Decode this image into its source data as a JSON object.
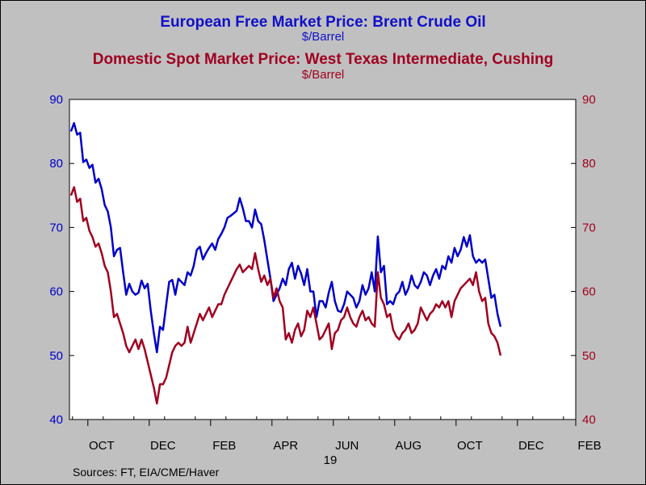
{
  "titles": {
    "series1_title": "European Free Market Price: Brent Crude Oil",
    "series1_unit": "$/Barrel",
    "series2_title": "Domestic Spot Market Price: West Texas Intermediate, Cushing",
    "series2_unit": "$/Barrel"
  },
  "source": "Sources:  FT, EIA/CME/Haver",
  "colors": {
    "background": "#c0c0c0",
    "plot_background": "#ffffff",
    "brent": "#0000c8",
    "wti": "#a00020"
  },
  "chart_data": {
    "type": "line",
    "x_unit": "months since Sep 2018 (weekly samples)",
    "x_range": [
      0,
      16.5
    ],
    "ylim": [
      40,
      90
    ],
    "y2lim": [
      40,
      90
    ],
    "left_axis_ticks": [
      "40",
      "50",
      "60",
      "70",
      "80",
      "90"
    ],
    "right_axis_ticks": [
      "40",
      "50",
      "60",
      "70",
      "80",
      "90"
    ],
    "x_tick_labels": [
      {
        "label": "OCT",
        "x": 0.6
      },
      {
        "label": "DEC",
        "x": 2.6
      },
      {
        "label": "FEB",
        "x": 4.6
      },
      {
        "label": "APR",
        "x": 6.6
      },
      {
        "label": "JUN",
        "x": 8.6
      },
      {
        "label": "AUG",
        "x": 10.6
      },
      {
        "label": "OCT",
        "x": 12.6
      },
      {
        "label": "DEC",
        "x": 14.6
      },
      {
        "label": "FEB",
        "x": 16.5
      }
    ],
    "year_label": {
      "label": "19",
      "x": 8.5
    },
    "grid": false,
    "series": [
      {
        "name": "European Free Market Price: Brent Crude Oil",
        "axis": "left",
        "color": "#0000c8",
        "points": [
          [
            0.05,
            85.0
          ],
          [
            0.15,
            86.3
          ],
          [
            0.25,
            84.5
          ],
          [
            0.35,
            84.8
          ],
          [
            0.45,
            80.2
          ],
          [
            0.55,
            80.6
          ],
          [
            0.65,
            79.3
          ],
          [
            0.75,
            79.8
          ],
          [
            0.85,
            77.0
          ],
          [
            0.95,
            77.6
          ],
          [
            1.05,
            76.0
          ],
          [
            1.15,
            73.5
          ],
          [
            1.25,
            72.5
          ],
          [
            1.35,
            70.0
          ],
          [
            1.45,
            65.5
          ],
          [
            1.55,
            66.5
          ],
          [
            1.65,
            66.8
          ],
          [
            1.75,
            63.0
          ],
          [
            1.85,
            59.5
          ],
          [
            1.95,
            61.2
          ],
          [
            2.05,
            60.0
          ],
          [
            2.15,
            59.5
          ],
          [
            2.25,
            59.8
          ],
          [
            2.35,
            61.7
          ],
          [
            2.45,
            60.5
          ],
          [
            2.55,
            61.2
          ],
          [
            2.65,
            57.0
          ],
          [
            2.75,
            53.5
          ],
          [
            2.85,
            50.5
          ],
          [
            2.95,
            54.5
          ],
          [
            3.05,
            54.0
          ],
          [
            3.15,
            57.8
          ],
          [
            3.25,
            61.5
          ],
          [
            3.35,
            61.8
          ],
          [
            3.45,
            59.5
          ],
          [
            3.55,
            62.0
          ],
          [
            3.65,
            61.5
          ],
          [
            3.75,
            61.0
          ],
          [
            3.85,
            63.0
          ],
          [
            3.95,
            62.5
          ],
          [
            4.05,
            64.0
          ],
          [
            4.15,
            66.5
          ],
          [
            4.25,
            67.0
          ],
          [
            4.35,
            65.0
          ],
          [
            4.45,
            66.0
          ],
          [
            4.55,
            66.8
          ],
          [
            4.65,
            67.5
          ],
          [
            4.75,
            66.5
          ],
          [
            4.85,
            68.2
          ],
          [
            4.95,
            69.0
          ],
          [
            5.05,
            70.0
          ],
          [
            5.15,
            71.5
          ],
          [
            5.25,
            71.8
          ],
          [
            5.35,
            72.2
          ],
          [
            5.45,
            72.6
          ],
          [
            5.55,
            74.6
          ],
          [
            5.65,
            73.0
          ],
          [
            5.75,
            71.0
          ],
          [
            5.85,
            71.0
          ],
          [
            5.95,
            70.0
          ],
          [
            6.05,
            72.8
          ],
          [
            6.15,
            71.0
          ],
          [
            6.25,
            70.5
          ],
          [
            6.35,
            68.0
          ],
          [
            6.45,
            65.0
          ],
          [
            6.55,
            62.0
          ],
          [
            6.65,
            58.5
          ],
          [
            6.75,
            59.5
          ],
          [
            6.85,
            60.5
          ],
          [
            6.95,
            62.0
          ],
          [
            7.05,
            61.0
          ],
          [
            7.15,
            63.5
          ],
          [
            7.25,
            64.5
          ],
          [
            7.35,
            62.0
          ],
          [
            7.45,
            64.0
          ],
          [
            7.55,
            62.8
          ],
          [
            7.65,
            61.0
          ],
          [
            7.75,
            63.5
          ],
          [
            7.85,
            60.0
          ],
          [
            7.95,
            60.0
          ],
          [
            8.05,
            56.0
          ],
          [
            8.15,
            58.5
          ],
          [
            8.25,
            58.5
          ],
          [
            8.35,
            57.5
          ],
          [
            8.45,
            59.8
          ],
          [
            8.55,
            61.5
          ],
          [
            8.65,
            58.5
          ],
          [
            8.75,
            57.0
          ],
          [
            8.85,
            56.8
          ],
          [
            8.95,
            58.0
          ],
          [
            9.05,
            60.0
          ],
          [
            9.15,
            59.5
          ],
          [
            9.25,
            59.0
          ],
          [
            9.35,
            57.5
          ],
          [
            9.45,
            58.5
          ],
          [
            9.55,
            61.0
          ],
          [
            9.65,
            59.5
          ],
          [
            9.75,
            60.5
          ],
          [
            9.85,
            63.0
          ],
          [
            9.95,
            60.0
          ],
          [
            10.05,
            68.6
          ],
          [
            10.15,
            63.0
          ],
          [
            10.25,
            64.0
          ],
          [
            10.35,
            58.0
          ],
          [
            10.45,
            58.5
          ],
          [
            10.55,
            58.0
          ],
          [
            10.65,
            59.5
          ],
          [
            10.75,
            60.0
          ],
          [
            10.85,
            61.5
          ],
          [
            10.95,
            59.5
          ],
          [
            11.05,
            60.5
          ],
          [
            11.15,
            62.5
          ],
          [
            11.25,
            61.0
          ],
          [
            11.35,
            60.5
          ],
          [
            11.45,
            61.5
          ],
          [
            11.55,
            63.0
          ],
          [
            11.65,
            62.5
          ],
          [
            11.75,
            61.0
          ],
          [
            11.85,
            62.5
          ],
          [
            11.95,
            63.5
          ],
          [
            12.05,
            62.0
          ],
          [
            12.15,
            64.0
          ],
          [
            12.25,
            63.5
          ],
          [
            12.35,
            65.5
          ],
          [
            12.45,
            64.5
          ],
          [
            12.55,
            66.8
          ],
          [
            12.65,
            65.5
          ],
          [
            12.75,
            66.5
          ],
          [
            12.85,
            68.5
          ],
          [
            12.95,
            67.0
          ],
          [
            13.05,
            68.8
          ],
          [
            13.15,
            65.5
          ],
          [
            13.25,
            64.5
          ],
          [
            13.35,
            65.0
          ],
          [
            13.45,
            64.5
          ],
          [
            13.55,
            65.0
          ],
          [
            13.65,
            62.0
          ],
          [
            13.75,
            59.0
          ],
          [
            13.85,
            59.5
          ],
          [
            13.95,
            56.5
          ],
          [
            14.05,
            54.5
          ]
        ]
      },
      {
        "name": "Domestic Spot Market Price: West Texas Intermediate, Cushing",
        "axis": "right",
        "color": "#a00020",
        "points": [
          [
            0.05,
            75.0
          ],
          [
            0.15,
            76.3
          ],
          [
            0.25,
            74.0
          ],
          [
            0.35,
            74.5
          ],
          [
            0.45,
            71.0
          ],
          [
            0.55,
            71.5
          ],
          [
            0.65,
            69.5
          ],
          [
            0.75,
            68.5
          ],
          [
            0.85,
            67.0
          ],
          [
            0.95,
            67.5
          ],
          [
            1.05,
            66.0
          ],
          [
            1.15,
            64.0
          ],
          [
            1.25,
            63.0
          ],
          [
            1.35,
            60.0
          ],
          [
            1.45,
            56.0
          ],
          [
            1.55,
            56.5
          ],
          [
            1.65,
            55.0
          ],
          [
            1.75,
            53.5
          ],
          [
            1.85,
            51.5
          ],
          [
            1.95,
            50.5
          ],
          [
            2.05,
            51.5
          ],
          [
            2.15,
            52.5
          ],
          [
            2.25,
            51.0
          ],
          [
            2.35,
            52.5
          ],
          [
            2.45,
            51.0
          ],
          [
            2.55,
            49.0
          ],
          [
            2.65,
            47.0
          ],
          [
            2.75,
            45.0
          ],
          [
            2.85,
            42.5
          ],
          [
            2.95,
            45.5
          ],
          [
            3.05,
            45.5
          ],
          [
            3.15,
            46.5
          ],
          [
            3.25,
            48.5
          ],
          [
            3.35,
            50.5
          ],
          [
            3.45,
            51.5
          ],
          [
            3.55,
            52.0
          ],
          [
            3.65,
            51.5
          ],
          [
            3.75,
            52.0
          ],
          [
            3.85,
            54.5
          ],
          [
            3.95,
            52.0
          ],
          [
            4.05,
            53.5
          ],
          [
            4.15,
            55.0
          ],
          [
            4.25,
            56.5
          ],
          [
            4.35,
            55.5
          ],
          [
            4.45,
            56.5
          ],
          [
            4.55,
            57.5
          ],
          [
            4.65,
            56.0
          ],
          [
            4.75,
            57.0
          ],
          [
            4.85,
            58.0
          ],
          [
            4.95,
            58.0
          ],
          [
            5.05,
            59.5
          ],
          [
            5.15,
            60.5
          ],
          [
            5.25,
            61.5
          ],
          [
            5.35,
            62.5
          ],
          [
            5.45,
            63.5
          ],
          [
            5.55,
            64.2
          ],
          [
            5.65,
            63.0
          ],
          [
            5.75,
            63.5
          ],
          [
            5.85,
            64.0
          ],
          [
            5.95,
            63.5
          ],
          [
            6.05,
            66.0
          ],
          [
            6.15,
            63.5
          ],
          [
            6.25,
            61.5
          ],
          [
            6.35,
            62.5
          ],
          [
            6.45,
            61.0
          ],
          [
            6.55,
            62.0
          ],
          [
            6.65,
            59.0
          ],
          [
            6.75,
            60.5
          ],
          [
            6.85,
            58.5
          ],
          [
            6.95,
            57.5
          ],
          [
            7.05,
            52.5
          ],
          [
            7.15,
            53.5
          ],
          [
            7.25,
            52.0
          ],
          [
            7.35,
            54.0
          ],
          [
            7.45,
            55.0
          ],
          [
            7.55,
            53.0
          ],
          [
            7.65,
            54.0
          ],
          [
            7.75,
            57.0
          ],
          [
            7.85,
            56.0
          ],
          [
            7.95,
            57.5
          ],
          [
            8.05,
            55.0
          ],
          [
            8.15,
            52.5
          ],
          [
            8.25,
            53.0
          ],
          [
            8.35,
            54.0
          ],
          [
            8.45,
            55.0
          ],
          [
            8.55,
            51.0
          ],
          [
            8.65,
            53.5
          ],
          [
            8.75,
            54.0
          ],
          [
            8.85,
            55.5
          ],
          [
            8.95,
            56.0
          ],
          [
            9.05,
            57.5
          ],
          [
            9.15,
            56.0
          ],
          [
            9.25,
            55.0
          ],
          [
            9.35,
            54.5
          ],
          [
            9.45,
            56.0
          ],
          [
            9.55,
            57.0
          ],
          [
            9.65,
            55.5
          ],
          [
            9.75,
            56.0
          ],
          [
            9.85,
            55.0
          ],
          [
            9.95,
            54.5
          ],
          [
            10.05,
            63.0
          ],
          [
            10.15,
            59.0
          ],
          [
            10.25,
            58.0
          ],
          [
            10.35,
            56.0
          ],
          [
            10.45,
            56.5
          ],
          [
            10.55,
            54.0
          ],
          [
            10.65,
            53.0
          ],
          [
            10.75,
            52.5
          ],
          [
            10.85,
            53.5
          ],
          [
            10.95,
            54.0
          ],
          [
            11.05,
            55.0
          ],
          [
            11.15,
            53.5
          ],
          [
            11.25,
            54.0
          ],
          [
            11.35,
            55.0
          ],
          [
            11.45,
            57.5
          ],
          [
            11.55,
            56.5
          ],
          [
            11.65,
            55.5
          ],
          [
            11.75,
            56.5
          ],
          [
            11.85,
            57.0
          ],
          [
            11.95,
            58.0
          ],
          [
            12.05,
            57.5
          ],
          [
            12.15,
            58.5
          ],
          [
            12.25,
            57.5
          ],
          [
            12.35,
            58.5
          ],
          [
            12.45,
            56.0
          ],
          [
            12.55,
            58.5
          ],
          [
            12.65,
            59.5
          ],
          [
            12.75,
            60.5
          ],
          [
            12.85,
            61.0
          ],
          [
            12.95,
            61.5
          ],
          [
            13.05,
            62.0
          ],
          [
            13.15,
            61.0
          ],
          [
            13.25,
            63.0
          ],
          [
            13.35,
            60.0
          ],
          [
            13.45,
            58.5
          ],
          [
            13.55,
            59.0
          ],
          [
            13.65,
            55.0
          ],
          [
            13.75,
            53.5
          ],
          [
            13.85,
            53.0
          ],
          [
            13.95,
            52.0
          ],
          [
            14.05,
            50.0
          ]
        ]
      }
    ]
  }
}
